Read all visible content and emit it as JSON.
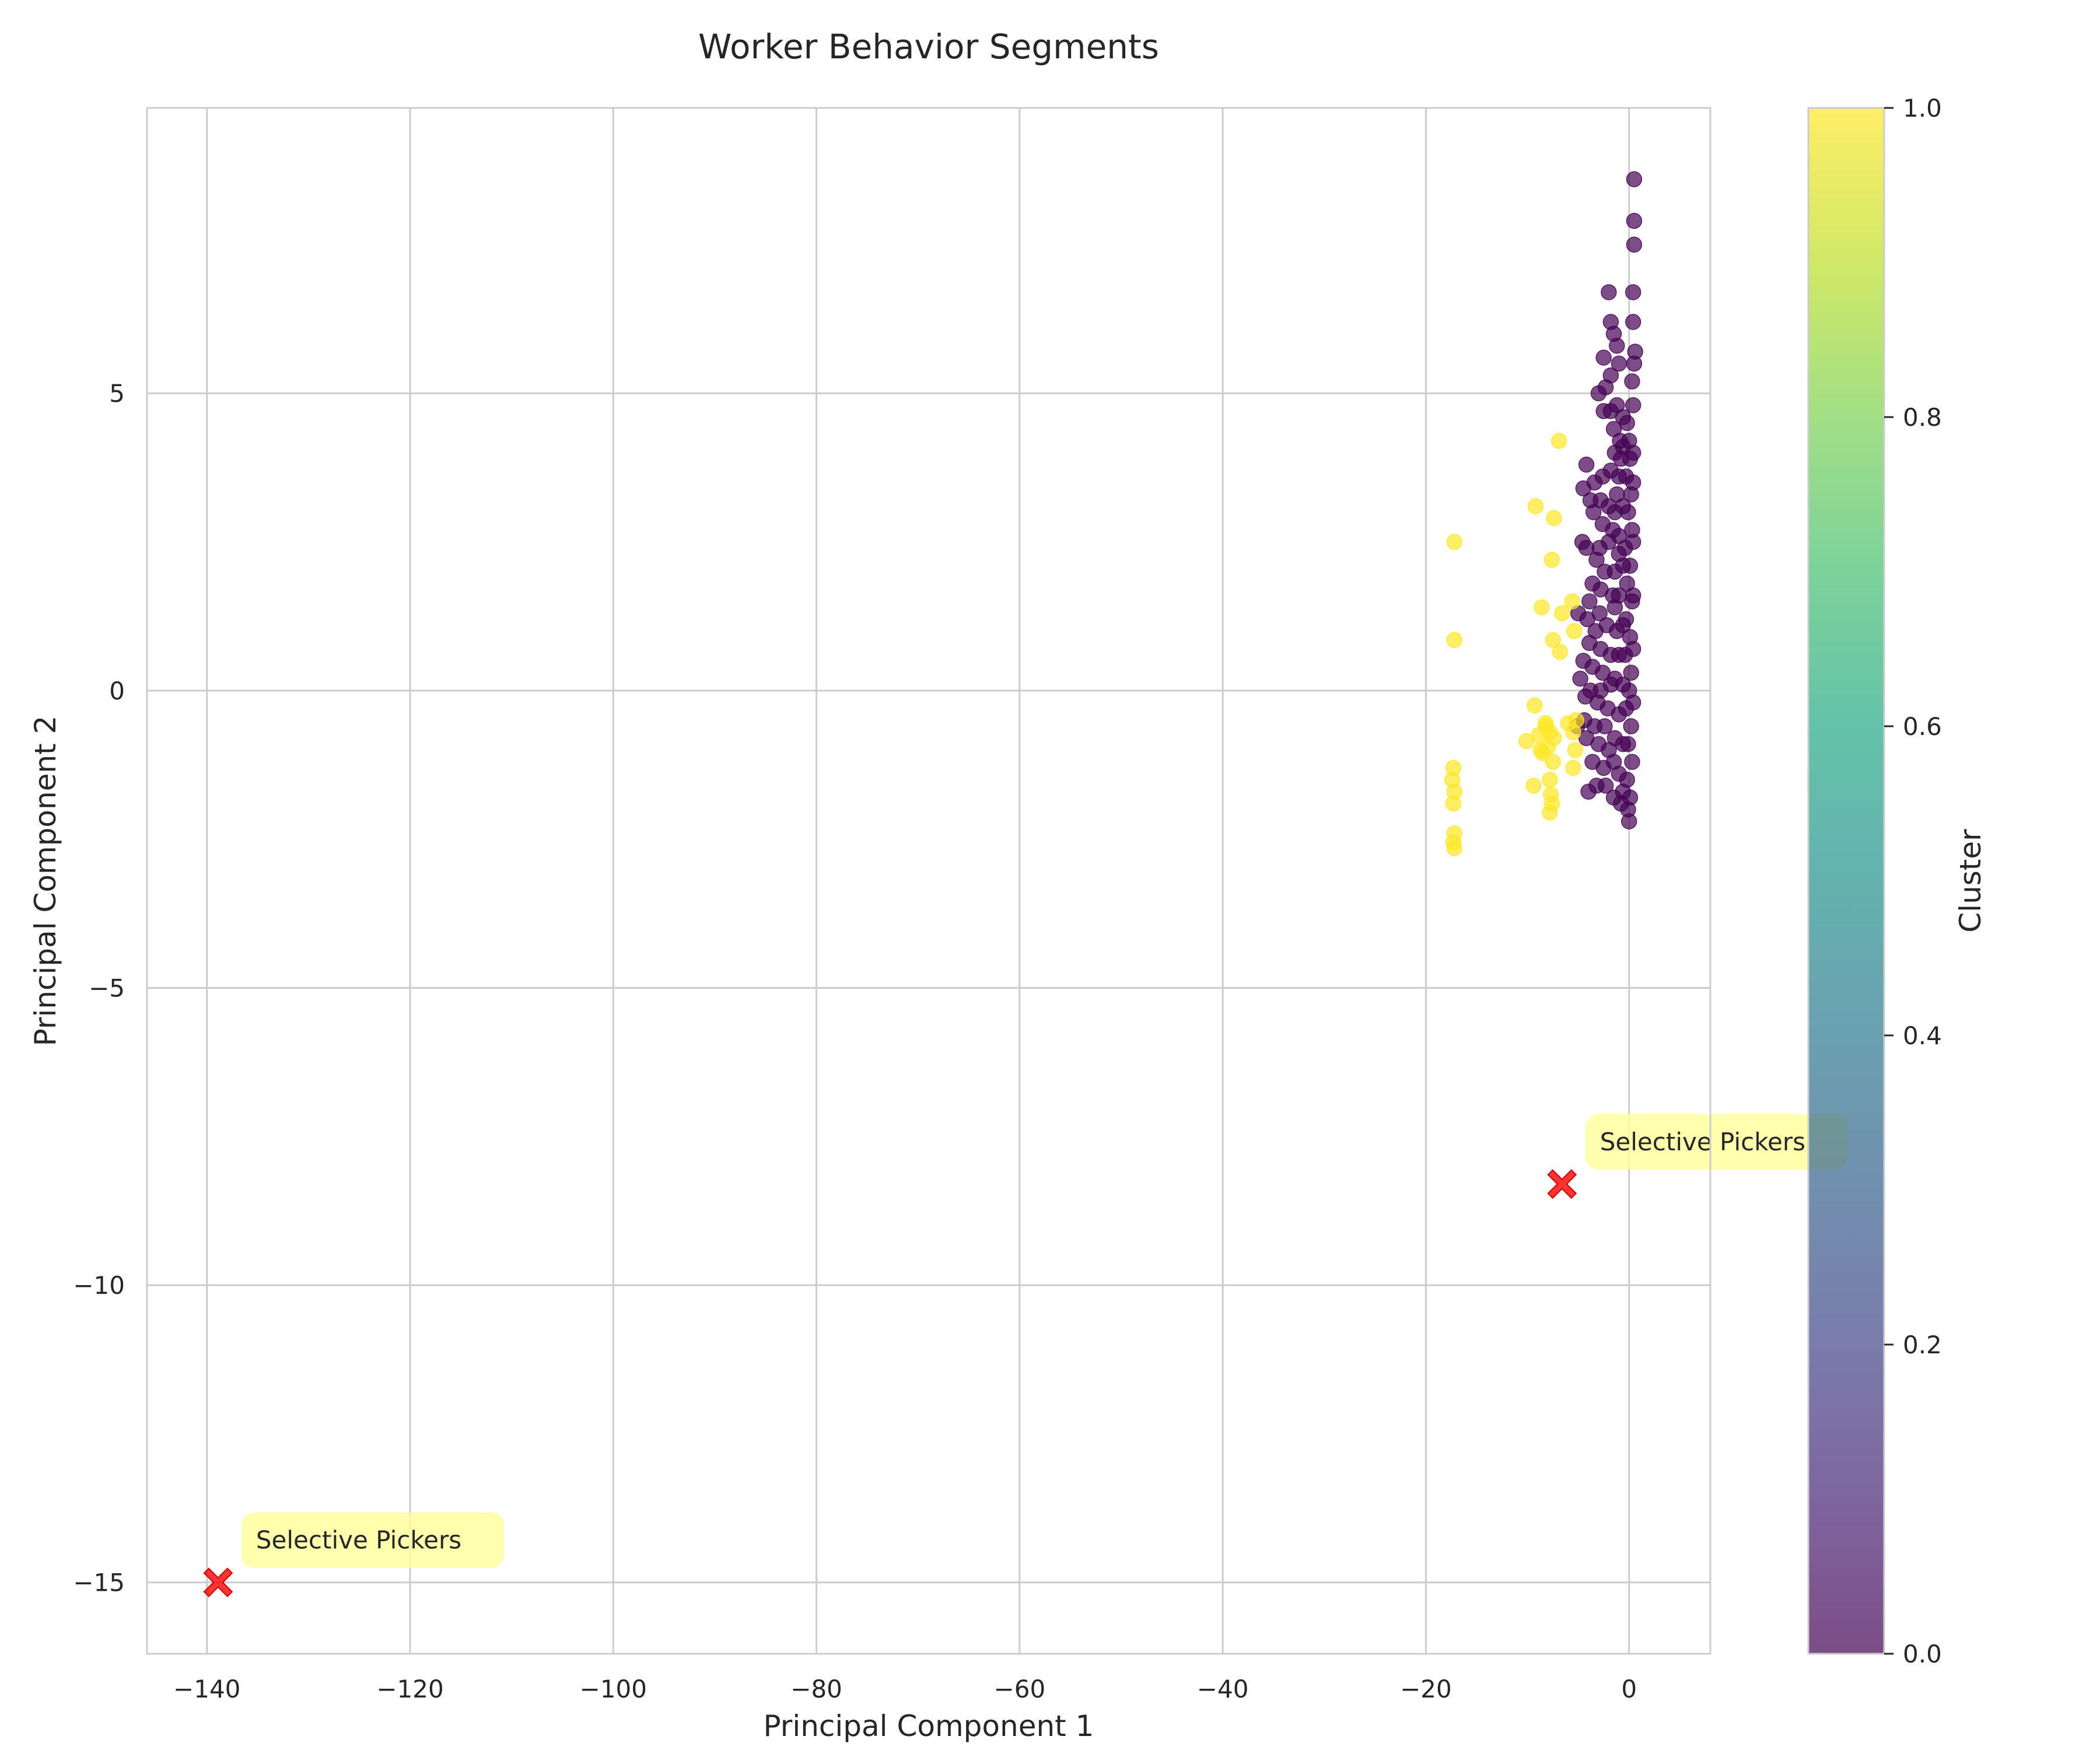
{
  "chart_data": {
    "type": "scatter",
    "title": "Worker Behavior Segments",
    "xlabel": "Principal Component 1",
    "ylabel": "Principal Component 2",
    "xlim": [
      -145.9,
      8.0
    ],
    "ylim": [
      -16.2,
      9.8
    ],
    "xticks": [
      -140,
      -120,
      -100,
      -80,
      -60,
      -40,
      -20,
      0
    ],
    "yticks": [
      -15,
      -10,
      -5,
      0,
      5
    ],
    "xtick_labels": [
      "−140",
      "−120",
      "−100",
      "−80",
      "−60",
      "−40",
      "−20",
      "0"
    ],
    "ytick_labels": [
      "−15",
      "−10",
      "−5",
      "0",
      "5"
    ],
    "grid": true,
    "colormap": "viridis",
    "point_alpha": 0.7,
    "series": [
      {
        "cluster": 0,
        "color": "#440154",
        "points": [
          [
            0.5,
            8.6
          ],
          [
            0.5,
            7.9
          ],
          [
            0.5,
            7.5
          ],
          [
            0.4,
            6.7
          ],
          [
            0.4,
            6.2
          ],
          [
            0.6,
            5.7
          ],
          [
            0.5,
            5.5
          ],
          [
            0.3,
            5.2
          ],
          [
            0.4,
            4.8
          ],
          [
            -2.0,
            6.7
          ],
          [
            -1.8,
            6.2
          ],
          [
            -1.5,
            6.0
          ],
          [
            -1.2,
            5.8
          ],
          [
            -1.0,
            5.5
          ],
          [
            -2.5,
            5.6
          ],
          [
            -1.8,
            5.3
          ],
          [
            -2.3,
            5.1
          ],
          [
            -3.0,
            5.0
          ],
          [
            -2.5,
            4.7
          ],
          [
            -1.8,
            4.7
          ],
          [
            -1.2,
            4.8
          ],
          [
            -0.6,
            4.6
          ],
          [
            -1.5,
            4.4
          ],
          [
            -0.9,
            4.2
          ],
          [
            -1.4,
            4.0
          ],
          [
            -0.8,
            3.9
          ],
          [
            -4.2,
            3.8
          ],
          [
            -3.4,
            3.5
          ],
          [
            -2.6,
            3.6
          ],
          [
            -1.8,
            3.7
          ],
          [
            -4.5,
            3.4
          ],
          [
            -3.8,
            3.2
          ],
          [
            -2.8,
            3.2
          ],
          [
            -2.0,
            3.1
          ],
          [
            -1.2,
            3.3
          ],
          [
            -3.5,
            3.0
          ],
          [
            -2.6,
            2.8
          ],
          [
            -1.6,
            2.7
          ],
          [
            -2.9,
            2.4
          ],
          [
            -2.0,
            2.5
          ],
          [
            -1.0,
            2.3
          ],
          [
            -4.6,
            2.5
          ],
          [
            -4.2,
            2.4
          ],
          [
            -3.2,
            2.2
          ],
          [
            -2.4,
            2.0
          ],
          [
            -1.4,
            2.0
          ],
          [
            -3.6,
            1.8
          ],
          [
            -2.8,
            1.7
          ],
          [
            -1.6,
            1.6
          ],
          [
            -3.9,
            1.5
          ],
          [
            -2.9,
            1.3
          ],
          [
            -5.0,
            1.3
          ],
          [
            -4.1,
            1.2
          ],
          [
            -3.3,
            1.0
          ],
          [
            -2.2,
            1.1
          ],
          [
            -1.2,
            1.0
          ],
          [
            -3.9,
            0.8
          ],
          [
            -2.8,
            0.7
          ],
          [
            -1.8,
            0.6
          ],
          [
            -4.5,
            0.5
          ],
          [
            -3.6,
            0.4
          ],
          [
            -2.6,
            0.3
          ],
          [
            -4.8,
            0.2
          ],
          [
            -3.8,
            0.0
          ],
          [
            -2.8,
            0.0
          ],
          [
            -1.8,
            0.1
          ],
          [
            -4.3,
            -0.1
          ],
          [
            -3.1,
            -0.2
          ],
          [
            -2.1,
            -0.3
          ],
          [
            -4.4,
            -0.5
          ],
          [
            -3.4,
            -0.6
          ],
          [
            -2.4,
            -0.6
          ],
          [
            -5.1,
            -0.6
          ],
          [
            -4.2,
            -0.8
          ],
          [
            -3.0,
            -0.9
          ],
          [
            -2.0,
            -1.0
          ],
          [
            -3.6,
            -1.2
          ],
          [
            -2.5,
            -1.3
          ],
          [
            -1.5,
            -1.2
          ],
          [
            -3.2,
            -1.6
          ],
          [
            -2.3,
            -1.6
          ],
          [
            -1.5,
            -1.8
          ],
          [
            -4.0,
            -1.7
          ],
          [
            -0.8,
            -1.9
          ],
          [
            -0.2,
            4.5
          ],
          [
            0.0,
            4.2
          ],
          [
            0.1,
            3.9
          ],
          [
            -0.3,
            3.6
          ],
          [
            0.2,
            3.3
          ],
          [
            -0.1,
            3.0
          ],
          [
            0.3,
            2.7
          ],
          [
            -0.4,
            2.4
          ],
          [
            0.1,
            2.1
          ],
          [
            -0.2,
            1.8
          ],
          [
            0.3,
            1.5
          ],
          [
            -0.3,
            1.2
          ],
          [
            0.1,
            0.9
          ],
          [
            -0.4,
            0.6
          ],
          [
            0.2,
            0.3
          ],
          [
            0.0,
            0.0
          ],
          [
            -0.3,
            -0.3
          ],
          [
            0.2,
            -0.6
          ],
          [
            -0.1,
            -0.9
          ],
          [
            0.3,
            -1.2
          ],
          [
            -0.2,
            -1.5
          ],
          [
            0.1,
            -1.8
          ],
          [
            -0.1,
            -2.0
          ],
          [
            0.0,
            -2.2
          ],
          [
            0.4,
            4.0
          ],
          [
            0.4,
            3.5
          ],
          [
            0.4,
            2.5
          ],
          [
            0.4,
            1.6
          ],
          [
            0.4,
            0.7
          ],
          [
            0.4,
            -0.2
          ],
          [
            -0.6,
            4.1
          ],
          [
            -0.6,
            3.1
          ],
          [
            -0.6,
            2.1
          ],
          [
            -0.6,
            1.1
          ],
          [
            -0.6,
            0.1
          ],
          [
            -0.6,
            -0.9
          ],
          [
            -0.6,
            -1.7
          ],
          [
            -1.0,
            3.6
          ],
          [
            -1.0,
            2.6
          ],
          [
            -1.0,
            1.6
          ],
          [
            -1.0,
            0.6
          ],
          [
            -1.0,
            -0.4
          ],
          [
            -1.0,
            -1.4
          ],
          [
            -1.4,
            3.0
          ],
          [
            -1.4,
            1.4
          ],
          [
            -1.4,
            0.2
          ],
          [
            -1.4,
            -0.8
          ]
        ]
      },
      {
        "cluster": 1,
        "color": "#fde725",
        "points": [
          [
            -6.9,
            4.2
          ],
          [
            -9.2,
            3.1
          ],
          [
            -7.4,
            2.9
          ],
          [
            -17.2,
            2.5
          ],
          [
            -7.6,
            2.2
          ],
          [
            -5.6,
            1.5
          ],
          [
            -8.6,
            1.4
          ],
          [
            -6.6,
            1.3
          ],
          [
            -5.4,
            1.0
          ],
          [
            -17.2,
            0.85
          ],
          [
            -7.5,
            0.85
          ],
          [
            -6.8,
            0.65
          ],
          [
            -9.3,
            -0.25
          ],
          [
            -5.2,
            -0.5
          ],
          [
            -8.2,
            -0.6
          ],
          [
            -7.8,
            -0.7
          ],
          [
            -5.5,
            -0.7
          ],
          [
            -8.9,
            -0.75
          ],
          [
            -7.4,
            -0.8
          ],
          [
            -10.1,
            -0.85
          ],
          [
            -8.0,
            -0.95
          ],
          [
            -5.3,
            -1.0
          ],
          [
            -8.5,
            -1.05
          ],
          [
            -7.5,
            -1.2
          ],
          [
            -5.5,
            -1.3
          ],
          [
            -17.3,
            -1.3
          ],
          [
            -17.4,
            -1.5
          ],
          [
            -7.8,
            -1.5
          ],
          [
            -9.4,
            -1.6
          ],
          [
            -17.2,
            -1.7
          ],
          [
            -7.7,
            -1.75
          ],
          [
            -17.3,
            -1.9
          ],
          [
            -7.6,
            -1.9
          ],
          [
            -7.8,
            -2.05
          ],
          [
            -17.2,
            -2.4
          ],
          [
            -17.3,
            -2.55
          ],
          [
            -17.2,
            -2.65
          ],
          [
            -8.2,
            -0.55
          ],
          [
            -6.0,
            -0.55
          ],
          [
            -8.7,
            -1.0
          ]
        ]
      }
    ],
    "centroids": [
      {
        "x": -6.6,
        "y": -8.3,
        "label": "Selective Pickers"
      },
      {
        "x": -138.9,
        "y": -15.0,
        "label": "Selective Pickers"
      }
    ],
    "colorbar": {
      "label": "Cluster",
      "min": 0.0,
      "max": 1.0,
      "ticks": [
        0.0,
        0.2,
        0.4,
        0.6,
        0.8,
        1.0
      ],
      "tick_labels": [
        "0.0",
        "0.2",
        "0.4",
        "0.6",
        "0.8",
        "1.0"
      ]
    }
  }
}
